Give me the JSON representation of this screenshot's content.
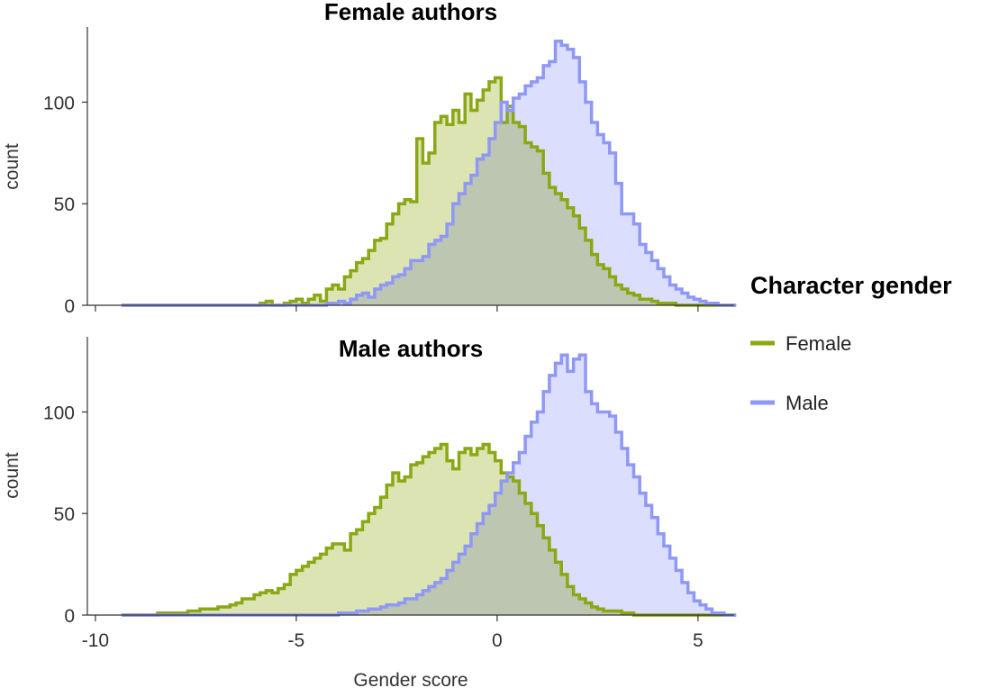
{
  "chart_data": {
    "type": "area",
    "xlabel": "Gender score",
    "ylabel": "count",
    "xlim": [
      -10.2,
      5.9
    ],
    "ylim": [
      0,
      137
    ],
    "xticks": [
      -10,
      -5,
      0,
      5
    ],
    "yticks": [
      0,
      50,
      100
    ],
    "legend": {
      "title": "Character gender",
      "placement": "right",
      "entries": [
        {
          "name": "Female",
          "color": "#8aa814"
        },
        {
          "name": "Male",
          "color": "#8f98f6"
        }
      ]
    },
    "series_colors": {
      "Female": {
        "line": "#8aa814",
        "fill": "#cfdb98"
      },
      "Male": {
        "line": "#8f98f6",
        "fill": "#cfd3fb"
      }
    },
    "grid": false,
    "bin_start": -9.35,
    "bin_width": 0.15,
    "panels": [
      {
        "title": "Female authors",
        "series": [
          {
            "name": "Female",
            "values": [
              0,
              0,
              0,
              0,
              0,
              0,
              0,
              0,
              0,
              0,
              0,
              0,
              0,
              0,
              0,
              0,
              0,
              0,
              0,
              0,
              0,
              0,
              0,
              1,
              2,
              0,
              0,
              1,
              2,
              3,
              1,
              3,
              5,
              2,
              8,
              10,
              8,
              14,
              17,
              21,
              23,
              27,
              32,
              33,
              40,
              45,
              50,
              52,
              51,
              82,
              70,
              75,
              90,
              93,
              89,
              96,
              90,
              104,
              96,
              101,
              106,
              110,
              112,
              90,
              98,
              90,
              88,
              80,
              78,
              76,
              65,
              58,
              55,
              52,
              48,
              44,
              38,
              32,
              25,
              20,
              18,
              14,
              10,
              8,
              6,
              5,
              3,
              3,
              2,
              1,
              1,
              1,
              0,
              0,
              0,
              0,
              0,
              0,
              0,
              0,
              0,
              0
            ]
          },
          {
            "name": "Male",
            "values": [
              0,
              0,
              0,
              0,
              0,
              0,
              0,
              0,
              0,
              0,
              0,
              0,
              0,
              0,
              0,
              0,
              0,
              0,
              0,
              0,
              0,
              0,
              0,
              0,
              0,
              0,
              0,
              0,
              0,
              0,
              0,
              0,
              0,
              0,
              1,
              1,
              2,
              1,
              3,
              5,
              6,
              4,
              8,
              10,
              11,
              14,
              15,
              18,
              22,
              22,
              24,
              30,
              32,
              34,
              40,
              50,
              55,
              60,
              64,
              72,
              74,
              82,
              90,
              100,
              96,
              102,
              104,
              108,
              110,
              112,
              118,
              120,
              130,
              128,
              126,
              122,
              110,
              100,
              90,
              84,
              80,
              75,
              60,
              45,
              45,
              40,
              30,
              26,
              22,
              18,
              14,
              10,
              8,
              6,
              4,
              3,
              2,
              1,
              1,
              0,
              0,
              0
            ]
          }
        ]
      },
      {
        "title": "Male authors",
        "series": [
          {
            "name": "Female",
            "values": [
              0,
              0,
              0,
              0,
              0,
              0,
              1,
              1,
              1,
              1,
              1,
              2,
              2,
              3,
              3,
              3,
              4,
              4,
              5,
              6,
              8,
              8,
              10,
              11,
              12,
              11,
              13,
              15,
              20,
              22,
              24,
              26,
              28,
              30,
              33,
              35,
              35,
              32,
              40,
              42,
              46,
              50,
              53,
              58,
              64,
              70,
              66,
              68,
              74,
              75,
              78,
              80,
              82,
              84,
              76,
              72,
              80,
              82,
              79,
              82,
              84,
              80,
              76,
              70,
              68,
              66,
              60,
              55,
              50,
              44,
              38,
              32,
              26,
              20,
              14,
              10,
              8,
              6,
              4,
              3,
              2,
              2,
              2,
              1,
              1,
              0,
              0,
              0,
              0,
              0,
              0,
              0,
              0,
              0,
              0,
              0,
              0,
              0,
              0,
              0,
              0,
              0
            ]
          },
          {
            "name": "Male",
            "values": [
              0,
              0,
              0,
              0,
              0,
              0,
              0,
              0,
              0,
              0,
              0,
              0,
              0,
              0,
              0,
              0,
              0,
              0,
              0,
              0,
              0,
              0,
              0,
              0,
              0,
              0,
              0,
              0,
              0,
              0,
              0,
              0,
              0,
              0,
              0,
              0,
              1,
              1,
              1,
              2,
              2,
              3,
              3,
              4,
              5,
              5,
              6,
              8,
              8,
              10,
              12,
              14,
              16,
              18,
              22,
              26,
              30,
              34,
              40,
              45,
              50,
              54,
              60,
              66,
              70,
              75,
              80,
              88,
              95,
              100,
              110,
              118,
              124,
              128,
              120,
              126,
              128,
              110,
              104,
              100,
              100,
              98,
              90,
              82,
              74,
              68,
              60,
              54,
              48,
              40,
              34,
              28,
              22,
              16,
              11,
              7,
              5,
              3,
              1,
              1,
              0,
              0
            ]
          }
        ]
      }
    ]
  }
}
